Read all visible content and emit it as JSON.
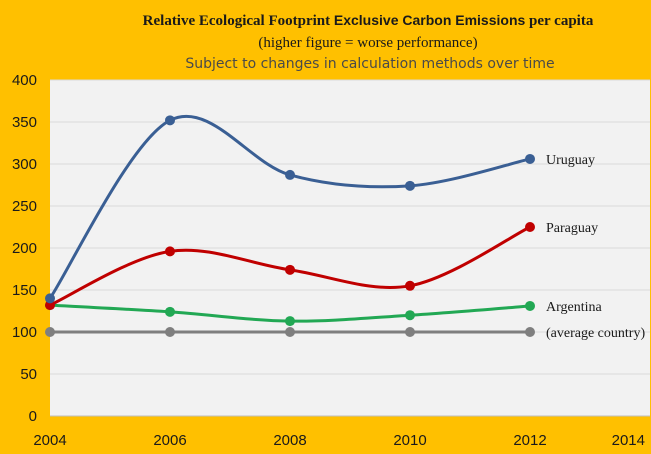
{
  "chart_data": {
    "type": "line",
    "title_part1": "Relative Ecological Footprint ",
    "title_part2": "Exclusive Carbon Emissions",
    "title_part3": " per capita",
    "subtitle": "(higher figure = worse performance)",
    "note": "Subject to changes in calculation methods over time",
    "x": [
      2004,
      2006,
      2008,
      2010,
      2012
    ],
    "xlim": [
      2004,
      2014
    ],
    "x_ticks": [
      "2004",
      "2006",
      "2008",
      "2010",
      "2012",
      "2014"
    ],
    "ylim": [
      0,
      400
    ],
    "y_ticks": [
      "0",
      "50",
      "100",
      "150",
      "200",
      "250",
      "300",
      "350",
      "400"
    ],
    "grid": true,
    "series": [
      {
        "name": "Uruguay",
        "color": "#3A5F94",
        "values": [
          140,
          352,
          287,
          274,
          306
        ]
      },
      {
        "name": "Paraguay",
        "color": "#C00000",
        "values": [
          132,
          196,
          174,
          155,
          225
        ]
      },
      {
        "name": "Argentina",
        "color": "#22A854",
        "values": [
          132,
          124,
          113,
          120,
          131
        ]
      },
      {
        "name": "(average country)",
        "color": "#7F7F7F",
        "values": [
          100,
          100,
          100,
          100,
          100
        ]
      }
    ]
  }
}
